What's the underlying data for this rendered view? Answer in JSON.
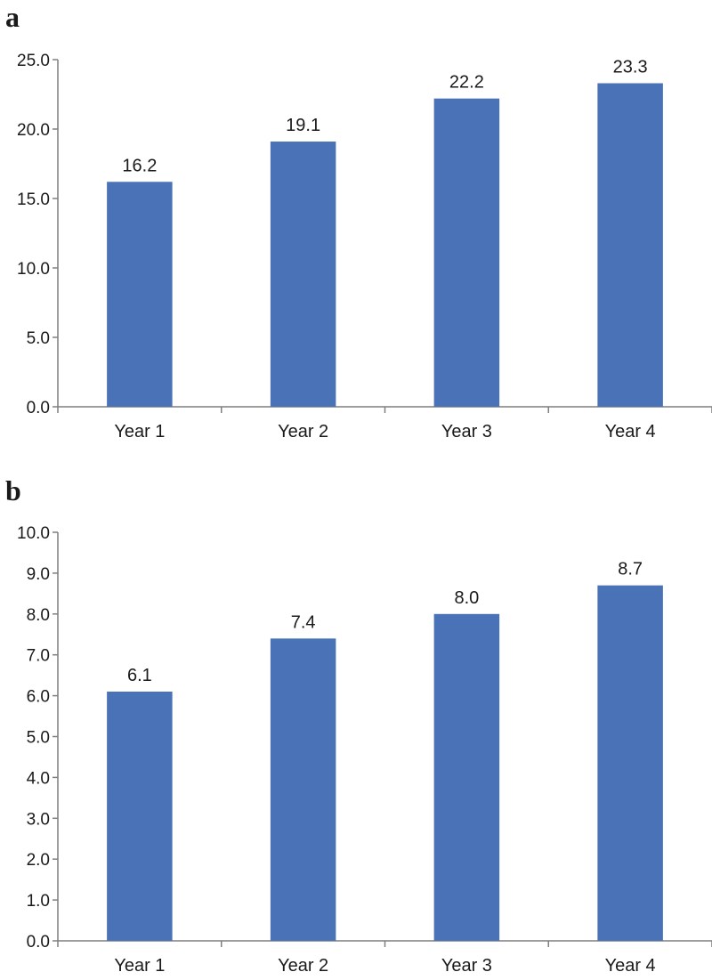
{
  "colors": {
    "bar": "#4a72b6",
    "axis": "#7f7f7f",
    "text": "#1a1a1a"
  },
  "chart_data": [
    {
      "panel": "a",
      "type": "bar",
      "title": "",
      "xlabel": "",
      "ylabel": "",
      "categories": [
        "Year 1",
        "Year 2",
        "Year 3",
        "Year 4"
      ],
      "values": [
        16.2,
        19.1,
        22.2,
        23.3
      ],
      "data_labels": [
        "16.2",
        "19.1",
        "22.2",
        "23.3"
      ],
      "ylim": [
        0,
        25
      ],
      "yticks": [
        0,
        5,
        10,
        15,
        20,
        25
      ],
      "ytick_labels": [
        "0.0",
        "5.0",
        "10.0",
        "15.0",
        "20.0",
        "25.0"
      ],
      "grid": false,
      "legend": "none"
    },
    {
      "panel": "b",
      "type": "bar",
      "title": "",
      "xlabel": "",
      "ylabel": "",
      "categories": [
        "Year 1",
        "Year 2",
        "Year 3",
        "Year 4"
      ],
      "values": [
        6.1,
        7.4,
        8.0,
        8.7
      ],
      "data_labels": [
        "6.1",
        "7.4",
        "8.0",
        "8.7"
      ],
      "ylim": [
        0,
        10
      ],
      "yticks": [
        0,
        1,
        2,
        3,
        4,
        5,
        6,
        7,
        8,
        9,
        10
      ],
      "ytick_labels": [
        "0.0",
        "1.0",
        "2.0",
        "3.0",
        "4.0",
        "5.0",
        "6.0",
        "7.0",
        "8.0",
        "9.0",
        "10.0"
      ],
      "grid": false,
      "legend": "none"
    }
  ]
}
